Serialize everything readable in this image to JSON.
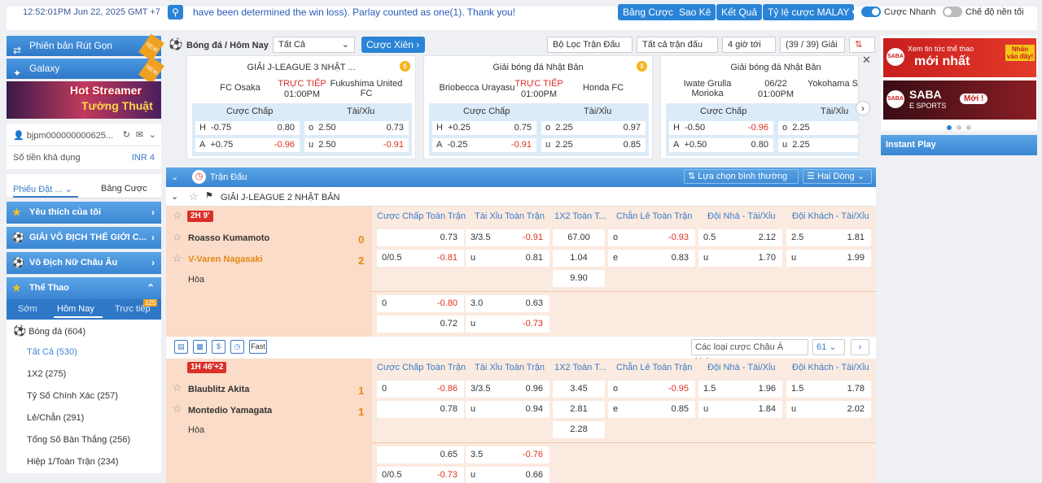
{
  "topbar": {
    "time": "12:52:01PM Jun 22, 2025 GMT +7",
    "marquee": "have been determined the win loss). Parlay counted as one(1). Thank you!",
    "buttons": [
      "Bảng Cược",
      "Sao Kê",
      "Kết Quả",
      "Tỷ lệ cược MALAY"
    ],
    "toggle1_label": "Cược Nhanh",
    "toggle2_label": "Chế độ nền tối"
  },
  "sidebar": {
    "promo1": "Phiên bản Rút Gọn",
    "promo2": "Galaxy",
    "new_tag": "NEW",
    "banner_l1": "Hot Streamer",
    "banner_l2": "Tường Thuật",
    "username": "bjpm000000000625...",
    "balance_label": "Số tiền khả dụng",
    "balance_value": "INR 4",
    "tab1": "Phiếu Đặt ...",
    "tab2": "Bảng Cược",
    "sec_fav": "Yêu thích của tôi",
    "sec_world": "GIẢI VÔ ĐỊCH THẾ GIỚI C...",
    "sec_women": "Vô Địch Nữ Châu Âu",
    "sec_sports": "Thể Thao",
    "sub_early": "Sớm",
    "sub_today": "Hôm Nay",
    "sub_live": "Trực tiếp",
    "live_count": "125",
    "sport_name": "Bóng đá",
    "sport_count": "(604)",
    "items": [
      "Tất Cả (530)",
      "1X2 (275)",
      "Tỷ Số Chính Xác (257)",
      "Lẻ/Chẵn (291)",
      "Tổng Số Bàn Thắng (256)",
      "Hiệp 1/Toàn Trận (234)"
    ]
  },
  "main": {
    "breadcrumb": "Bóng đá / Hôm Nay",
    "filter_all": "Tất Cả",
    "parlay_btn": "Cược Xiên",
    "f1": "Bộ Lọc Trận Đấu",
    "f2": "Tất cả trận đấu",
    "f3": "4 giờ tới",
    "f4": "(39 / 39) Giải",
    "cards": [
      {
        "league": "GIẢI J-LEAGUE 3 NHẬT ...",
        "home": "FC Osaka",
        "away": "Fukushima United FC",
        "status": "TRỰC TIẾP",
        "time": "01:00PM",
        "hdp_label": "Cược Chấp",
        "ou_label": "Tài/Xỉu",
        "r1": [
          "H",
          "-0.75",
          "0.80",
          "o",
          "2.50",
          "0.73"
        ],
        "r2": [
          "A",
          "+0.75",
          "-0.96",
          "u",
          "2.50",
          "-0.91"
        ]
      },
      {
        "league": "Giải bóng đá Nhật Bản",
        "home": "Briobecca Urayasu",
        "away": "Honda FC",
        "status": "TRỰC TIẾP",
        "time": "01:00PM",
        "hdp_label": "Cược Chấp",
        "ou_label": "Tài/Xỉu",
        "r1": [
          "H",
          "+0.25",
          "0.75",
          "o",
          "2.25",
          "0.97"
        ],
        "r2": [
          "A",
          "-0.25",
          "-0.91",
          "u",
          "2.25",
          "0.85"
        ]
      },
      {
        "league": "Giải bóng đá Nhật Bản",
        "home": "Iwate Grulla Morioka",
        "away": "Yokohama Sports and Culture",
        "status": "06/22",
        "time": "01:00PM",
        "hdp_label": "Cược Chấp",
        "ou_label": "Tài/Xỉu",
        "r1": [
          "H",
          "-0.50",
          "-0.96",
          "o",
          "2.25",
          ""
        ],
        "r2": [
          "A",
          "+0.50",
          "0.80",
          "u",
          "2.25",
          ""
        ]
      }
    ],
    "section_title": "Trận Đấu",
    "sort_select": "Lựa chọn bình thường",
    "lines_select": "Hai Dòng",
    "league_name": "GIẢI J-LEAGUE 2 NHẬT BẢN",
    "col_headers": [
      "Cược Chấp Toàn Trận",
      "Tài Xỉu Toàn Trận",
      "1X2 Toàn T...",
      "Chẵn Lẻ Toàn Trận",
      "Đội Nhà - Tài/Xỉu",
      "Đội Khách - Tài/Xỉu"
    ],
    "draw_label": "Hòa",
    "match1": {
      "status": "2H 9'",
      "home": "Roasso Kumamoto",
      "away": "V-Varen Nagasaki",
      "home_score": "0",
      "away_score": "2",
      "hdp_r1": [
        "",
        "0.73"
      ],
      "hdp_r2": [
        "0/0.5",
        "-0.81"
      ],
      "ou_r1": [
        "3/3.5",
        "-0.91"
      ],
      "ou_r2": [
        "u",
        "0.81"
      ],
      "x12": [
        "67.00",
        "1.04",
        "9.90"
      ],
      "oe_r1": [
        "o",
        "-0.93"
      ],
      "oe_r2": [
        "e",
        "0.83"
      ],
      "home_ou_r1": [
        "0.5",
        "2.12"
      ],
      "home_ou_r2": [
        "u",
        "1.70"
      ],
      "away_ou_r1": [
        "2.5",
        "1.81"
      ],
      "away_ou_r2": [
        "u",
        "1.99"
      ],
      "alt_hdp_r1": [
        "0",
        "-0.80"
      ],
      "alt_hdp_r2": [
        "",
        "0.72"
      ],
      "alt_ou_r1": [
        "3.0",
        "0.63"
      ],
      "alt_ou_r2": [
        "u",
        "-0.73"
      ]
    },
    "toolbar": {
      "fast_label": "Fast",
      "markets_select": "Các loại cược Châu Á khác",
      "page_select": "61"
    },
    "match2": {
      "status": "1H 46'+2",
      "home": "Blaublitz Akita",
      "away": "Montedio Yamagata",
      "home_score": "1",
      "away_score": "1",
      "hdp_r1": [
        "0",
        "-0.86"
      ],
      "hdp_r2": [
        "",
        "0.78"
      ],
      "ou_r1": [
        "3/3.5",
        "0.96"
      ],
      "ou_r2": [
        "u",
        "0.94"
      ],
      "x12": [
        "3.45",
        "2.81",
        "2.28"
      ],
      "oe_r1": [
        "o",
        "-0.95"
      ],
      "oe_r2": [
        "e",
        "0.85"
      ],
      "home_ou_r1": [
        "1.5",
        "1.96"
      ],
      "home_ou_r2": [
        "u",
        "1.84"
      ],
      "away_ou_r1": [
        "1.5",
        "1.78"
      ],
      "away_ou_r2": [
        "u",
        "2.02"
      ],
      "alt_hdp_r1": [
        "",
        "0.65"
      ],
      "alt_hdp_r2": [
        "0/0.5",
        "-0.73"
      ],
      "alt_ou_r1": [
        "3.5",
        "-0.76"
      ],
      "alt_ou_r2": [
        "u",
        "0.66"
      ]
    }
  },
  "rightside": {
    "ad1_l1": "Xem tin tức thể thao",
    "ad1_l2": "mới nhất",
    "ad1_tag": "Nhấn vào đây!",
    "ad2_l1": "SABA",
    "ad2_l2": "E SPORTS",
    "ad2_tag": "Mới !",
    "instant_play": "Instant Play"
  }
}
